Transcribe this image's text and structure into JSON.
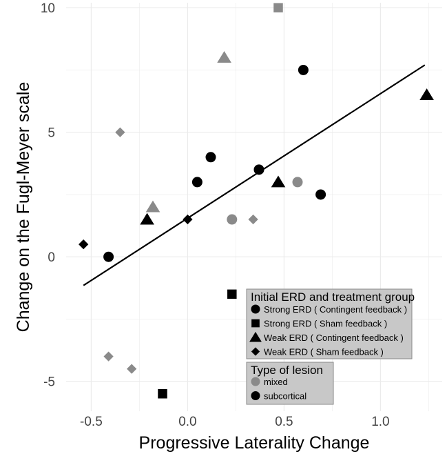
{
  "chart_data": {
    "type": "scatter",
    "xlabel": "Progressive Laterality Change",
    "ylabel": "Change on the Fugl-Meyer scale",
    "xlim": [
      -0.63,
      1.32
    ],
    "ylim": [
      -6.2,
      10.2
    ],
    "x_ticks": [
      -0.5,
      0.0,
      0.5,
      1.0
    ],
    "x_tick_labels": [
      "-0.5",
      "0.0",
      "0.5",
      "1.0"
    ],
    "y_ticks": [
      -5,
      0,
      5,
      10
    ],
    "y_tick_labels": [
      "-5",
      "0",
      "5",
      "10"
    ],
    "grid": true,
    "colors": {
      "mixed": "#8a8a8a",
      "subcortical": "#000000",
      "fit_line": "#000000"
    },
    "fit_line": {
      "x": [
        -0.54,
        1.23
      ],
      "y": [
        -1.15,
        7.7
      ]
    },
    "legend_shape": {
      "title": "Initial ERD and treatment group",
      "placement": "bottom-right",
      "entries": [
        {
          "shape": "circle",
          "label": "Strong ERD ( Contingent feedback )"
        },
        {
          "shape": "square",
          "label": "Strong ERD ( Sham feedback )"
        },
        {
          "shape": "triangle",
          "label": "Weak ERD ( Contingent feedback )"
        },
        {
          "shape": "diamond",
          "label": "Weak ERD ( Sham feedback )"
        }
      ]
    },
    "legend_color": {
      "title": "Type of lesion",
      "placement": "bottom-right",
      "entries": [
        {
          "key": "mixed",
          "label": "mixed"
        },
        {
          "key": "subcortical",
          "label": "subcortical"
        }
      ]
    },
    "points": [
      {
        "x": -0.41,
        "y": 0.0,
        "shape": "circle",
        "lesion": "subcortical"
      },
      {
        "x": 0.05,
        "y": 3.0,
        "shape": "circle",
        "lesion": "subcortical"
      },
      {
        "x": 0.12,
        "y": 4.0,
        "shape": "circle",
        "lesion": "subcortical"
      },
      {
        "x": 0.23,
        "y": 1.5,
        "shape": "circle",
        "lesion": "mixed"
      },
      {
        "x": 0.37,
        "y": 3.5,
        "shape": "circle",
        "lesion": "subcortical"
      },
      {
        "x": 0.57,
        "y": 3.0,
        "shape": "circle",
        "lesion": "mixed"
      },
      {
        "x": 0.6,
        "y": 7.5,
        "shape": "circle",
        "lesion": "subcortical"
      },
      {
        "x": 0.69,
        "y": 2.5,
        "shape": "circle",
        "lesion": "subcortical"
      },
      {
        "x": 0.47,
        "y": 10.0,
        "shape": "square",
        "lesion": "mixed"
      },
      {
        "x": 0.23,
        "y": -1.5,
        "shape": "square",
        "lesion": "subcortical"
      },
      {
        "x": -0.13,
        "y": -5.5,
        "shape": "square",
        "lesion": "subcortical"
      },
      {
        "x": 0.19,
        "y": 8.0,
        "shape": "triangle",
        "lesion": "mixed"
      },
      {
        "x": -0.18,
        "y": 2.0,
        "shape": "triangle",
        "lesion": "mixed"
      },
      {
        "x": -0.21,
        "y": 1.5,
        "shape": "triangle",
        "lesion": "subcortical"
      },
      {
        "x": 0.47,
        "y": 3.0,
        "shape": "triangle",
        "lesion": "subcortical"
      },
      {
        "x": 1.24,
        "y": 6.5,
        "shape": "triangle",
        "lesion": "subcortical"
      },
      {
        "x": -0.35,
        "y": 5.0,
        "shape": "diamond",
        "lesion": "mixed"
      },
      {
        "x": 0.34,
        "y": 1.5,
        "shape": "diamond",
        "lesion": "mixed"
      },
      {
        "x": -0.41,
        "y": -4.0,
        "shape": "diamond",
        "lesion": "mixed"
      },
      {
        "x": -0.29,
        "y": -4.5,
        "shape": "diamond",
        "lesion": "mixed"
      },
      {
        "x": -0.54,
        "y": 0.5,
        "shape": "diamond",
        "lesion": "subcortical"
      },
      {
        "x": 0.0,
        "y": 1.5,
        "shape": "diamond",
        "lesion": "subcortical"
      }
    ]
  }
}
